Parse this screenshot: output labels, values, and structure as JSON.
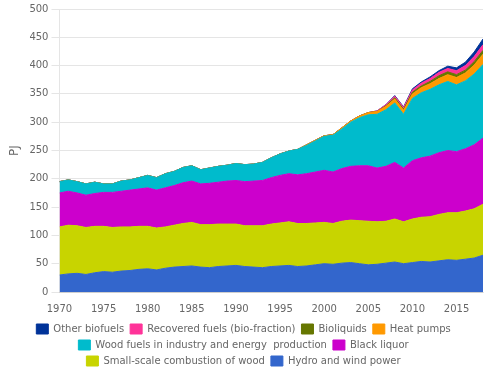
{
  "chart_data": {
    "type": "area",
    "stacked": true,
    "ylabel": "PJ",
    "x": [
      1970,
      1971,
      1972,
      1973,
      1974,
      1975,
      1976,
      1977,
      1978,
      1979,
      1980,
      1981,
      1982,
      1983,
      1984,
      1985,
      1986,
      1987,
      1988,
      1989,
      1990,
      1991,
      1992,
      1993,
      1994,
      1995,
      1996,
      1997,
      1998,
      1999,
      2000,
      2001,
      2002,
      2003,
      2004,
      2005,
      2006,
      2007,
      2008,
      2009,
      2010,
      2011,
      2012,
      2013,
      2014,
      2015,
      2016,
      2017,
      2018
    ],
    "series": [
      {
        "name": "Hydro and wind power",
        "color": "#3366cc",
        "values": [
          30,
          32,
          33,
          31,
          34,
          36,
          35,
          37,
          38,
          40,
          41,
          39,
          42,
          44,
          45,
          46,
          44,
          43,
          45,
          46,
          47,
          45,
          44,
          43,
          45,
          46,
          47,
          45,
          46,
          48,
          50,
          49,
          51,
          52,
          50,
          48,
          49,
          51,
          53,
          50,
          52,
          54,
          53,
          55,
          57,
          56,
          58,
          60,
          65
        ]
      },
      {
        "name": "Small-scale combustion of wood",
        "color": "#c8d400",
        "values": [
          85,
          86,
          84,
          83,
          82,
          80,
          79,
          78,
          77,
          76,
          75,
          74,
          73,
          74,
          76,
          77,
          75,
          76,
          75,
          74,
          73,
          72,
          73,
          74,
          75,
          76,
          77,
          76,
          75,
          74,
          73,
          72,
          74,
          75,
          76,
          77,
          75,
          74,
          76,
          74,
          77,
          78,
          80,
          82,
          83,
          84,
          85,
          87,
          90
        ]
      },
      {
        "name": "Black liquor",
        "color": "#cc00cc",
        "values": [
          60,
          60,
          58,
          57,
          58,
          60,
          62,
          63,
          65,
          66,
          68,
          67,
          69,
          70,
          72,
          73,
          72,
          73,
          74,
          76,
          77,
          78,
          79,
          80,
          82,
          84,
          85,
          86,
          88,
          90,
          92,
          91,
          93,
          95,
          97,
          98,
          95,
          97,
          100,
          95,
          103,
          105,
          107,
          109,
          110,
          108,
          110,
          113,
          117
        ]
      },
      {
        "name": "Wood fuels in industry and energy  production",
        "color": "#00bbcc",
        "values": [
          20,
          20,
          20,
          20,
          20,
          15,
          15,
          18,
          18,
          20,
          22,
          22,
          25,
          25,
          27,
          27,
          25,
          27,
          28,
          28,
          30,
          30,
          30,
          32,
          35,
          38,
          40,
          45,
          50,
          55,
          60,
          65,
          70,
          78,
          85,
          90,
          95,
          100,
          105,
          95,
          110,
          115,
          118,
          120,
          122,
          118,
          120,
          125,
          130
        ]
      },
      {
        "name": "Heat pumps",
        "color": "#ff9900",
        "values": [
          0,
          0,
          0,
          0,
          0,
          0,
          0,
          0,
          0,
          0,
          0,
          0,
          0,
          0,
          0,
          0,
          0,
          0,
          0,
          0,
          0,
          0,
          0,
          0,
          0,
          0,
          0,
          0,
          1,
          1,
          1,
          1,
          2,
          2,
          3,
          4,
          5,
          6,
          7,
          7,
          8,
          9,
          10,
          11,
          12,
          13,
          14,
          16,
          18
        ]
      },
      {
        "name": "Bioliquids",
        "color": "#667700",
        "values": [
          0,
          0,
          0,
          0,
          0,
          0,
          0,
          0,
          0,
          0,
          0,
          0,
          0,
          0,
          0,
          0,
          0,
          0,
          0,
          0,
          0,
          0,
          0,
          0,
          0,
          0,
          0,
          0,
          0,
          0,
          0,
          0,
          0,
          0,
          0,
          0,
          0,
          1,
          2,
          2,
          3,
          3,
          4,
          5,
          5,
          5,
          5,
          6,
          7
        ]
      },
      {
        "name": "Recovered fuels (bio-fraction)",
        "color": "#ff3399",
        "values": [
          0,
          0,
          0,
          0,
          0,
          0,
          0,
          0,
          0,
          0,
          0,
          0,
          0,
          0,
          0,
          0,
          0,
          0,
          0,
          0,
          0,
          0,
          0,
          0,
          0,
          0,
          0,
          0,
          0,
          0,
          0,
          0,
          0,
          0,
          0,
          0,
          1,
          2,
          3,
          3,
          4,
          5,
          5,
          6,
          6,
          7,
          8,
          9,
          10
        ]
      },
      {
        "name": "Other biofuels",
        "color": "#003399",
        "values": [
          0,
          0,
          0,
          0,
          0,
          0,
          0,
          0,
          0,
          0,
          0,
          0,
          0,
          0,
          0,
          0,
          0,
          0,
          0,
          0,
          0,
          0,
          0,
          0,
          0,
          0,
          0,
          0,
          0,
          0,
          0,
          0,
          0,
          0,
          0,
          0,
          0,
          0,
          1,
          1,
          2,
          2,
          3,
          3,
          4,
          5,
          6,
          8,
          10
        ]
      }
    ],
    "ylim": [
      0,
      500
    ],
    "yticks": [
      0,
      50,
      100,
      150,
      200,
      250,
      300,
      350,
      400,
      450,
      500
    ],
    "xlim": [
      1970,
      2018
    ],
    "xticks": [
      1970,
      1975,
      1980,
      1985,
      1990,
      1995,
      2000,
      2005,
      2010,
      2015
    ],
    "grid": true,
    "legend": "bottom"
  }
}
